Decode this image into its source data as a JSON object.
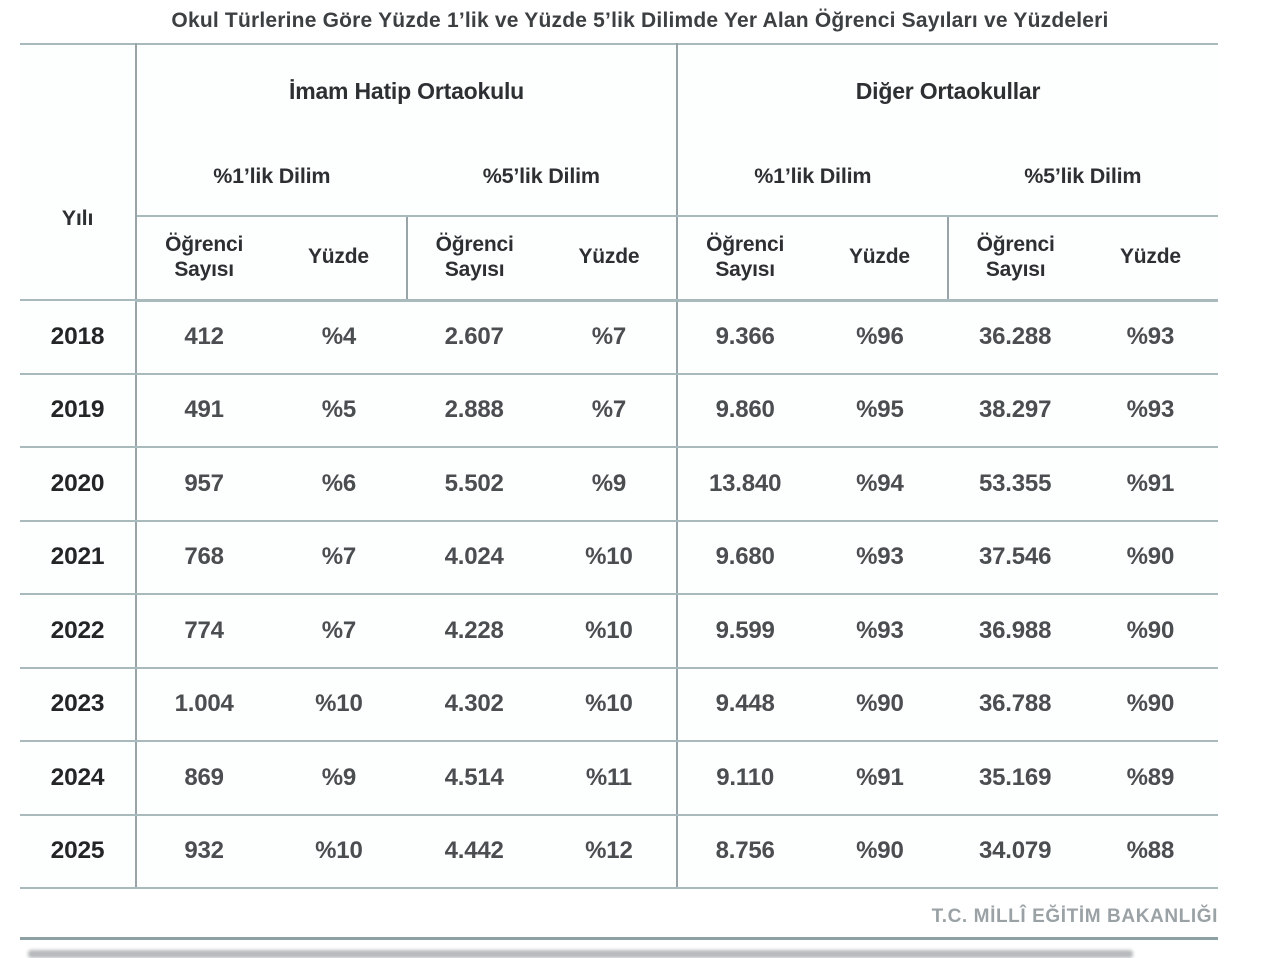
{
  "title": "Okul Türlerine Göre Yüzde 1’lik ve Yüzde 5’lik Dilimde Yer Alan Öğrenci Sayıları ve Yüzdeleri",
  "footer": "T.C. MİLLÎ EĞİTİM BAKANLIĞI",
  "colors": {
    "border_horizontal": "#a9babc",
    "border_vertical": "#98a4a7",
    "header_text": "#2d3033",
    "data_text": "#4a4e51",
    "footer_text": "#9aa2a6"
  },
  "table": {
    "year_header": "Yılı",
    "groups": [
      {
        "label": "İmam Hatip Ortaokulu",
        "sub": [
          "%1’lik Dilim",
          "%5’lik Dilim"
        ]
      },
      {
        "label": "Diğer Ortaokullar",
        "sub": [
          "%1’lik Dilim",
          "%5’lik Dilim"
        ]
      }
    ],
    "col_headers": {
      "count": "Öğrenci\nSayısı",
      "percent": "Yüzde"
    },
    "rows": [
      {
        "year": "2018",
        "values": [
          "412",
          "%4",
          "2.607",
          "%7",
          "9.366",
          "%96",
          "36.288",
          "%93"
        ]
      },
      {
        "year": "2019",
        "values": [
          "491",
          "%5",
          "2.888",
          "%7",
          "9.860",
          "%95",
          "38.297",
          "%93"
        ]
      },
      {
        "year": "2020",
        "values": [
          "957",
          "%6",
          "5.502",
          "%9",
          "13.840",
          "%94",
          "53.355",
          "%91"
        ]
      },
      {
        "year": "2021",
        "values": [
          "768",
          "%7",
          "4.024",
          "%10",
          "9.680",
          "%93",
          "37.546",
          "%90"
        ]
      },
      {
        "year": "2022",
        "values": [
          "774",
          "%7",
          "4.228",
          "%10",
          "9.599",
          "%93",
          "36.988",
          "%90"
        ]
      },
      {
        "year": "2023",
        "values": [
          "1.004",
          "%10",
          "4.302",
          "%10",
          "9.448",
          "%90",
          "36.788",
          "%90"
        ]
      },
      {
        "year": "2024",
        "values": [
          "869",
          "%9",
          "4.514",
          "%11",
          "9.110",
          "%91",
          "35.169",
          "%89"
        ]
      },
      {
        "year": "2025",
        "values": [
          "932",
          "%10",
          "4.442",
          "%12",
          "8.756",
          "%90",
          "34.079",
          "%88"
        ]
      }
    ]
  },
  "chart_data": {
    "type": "table",
    "title": "Okul Türlerine Göre Yüzde 1’lik ve Yüzde 5’lik Dilimde Yer Alan Öğrenci Sayıları ve Yüzdeleri",
    "column_groups": [
      "İmam Hatip Ortaokulu %1’lik Dilim",
      "İmam Hatip Ortaokulu %5’lik Dilim",
      "Diğer Ortaokullar %1’lik Dilim",
      "Diğer Ortaokullar %5’lik Dilim"
    ],
    "columns": [
      "Yılı",
      "Öğrenci Sayısı",
      "Yüzde",
      "Öğrenci Sayısı",
      "Yüzde",
      "Öğrenci Sayısı",
      "Yüzde",
      "Öğrenci Sayısı",
      "Yüzde"
    ],
    "rows": [
      [
        "2018",
        "412",
        "%4",
        "2.607",
        "%7",
        "9.366",
        "%96",
        "36.288",
        "%93"
      ],
      [
        "2019",
        "491",
        "%5",
        "2.888",
        "%7",
        "9.860",
        "%95",
        "38.297",
        "%93"
      ],
      [
        "2020",
        "957",
        "%6",
        "5.502",
        "%9",
        "13.840",
        "%94",
        "53.355",
        "%91"
      ],
      [
        "2021",
        "768",
        "%7",
        "4.024",
        "%10",
        "9.680",
        "%93",
        "37.546",
        "%90"
      ],
      [
        "2022",
        "774",
        "%7",
        "4.228",
        "%10",
        "9.599",
        "%93",
        "36.988",
        "%90"
      ],
      [
        "2023",
        "1.004",
        "%10",
        "4.302",
        "%10",
        "9.448",
        "%90",
        "36.788",
        "%90"
      ],
      [
        "2024",
        "869",
        "%9",
        "4.514",
        "%11",
        "9.110",
        "%91",
        "35.169",
        "%89"
      ],
      [
        "2025",
        "932",
        "%10",
        "4.442",
        "%12",
        "8.756",
        "%90",
        "34.079",
        "%88"
      ]
    ],
    "source": "T.C. MİLLÎ EĞİTİM BAKANLIĞI"
  }
}
